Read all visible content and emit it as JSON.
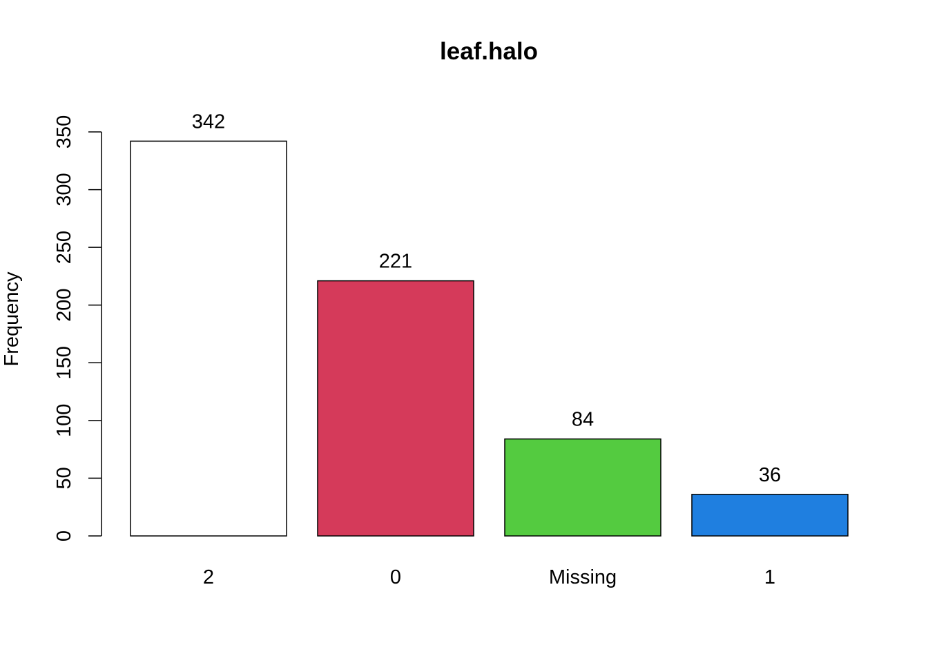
{
  "chart_data": {
    "type": "bar",
    "title": "leaf.halo",
    "xlabel": "",
    "ylabel": "Frequency",
    "categories": [
      "2",
      "0",
      "Missing",
      "1"
    ],
    "values": [
      342,
      221,
      84,
      36
    ],
    "data_labels": [
      "342",
      "221",
      "84",
      "36"
    ],
    "colors": [
      "#FFFFFF",
      "#D53A5A",
      "#54CB40",
      "#1F7FE0"
    ],
    "ylim": [
      0,
      350
    ],
    "yticks": [
      0,
      50,
      100,
      150,
      200,
      250,
      300,
      350
    ],
    "ytick_labels": [
      "0",
      "50",
      "100",
      "150",
      "200",
      "250",
      "300",
      "350"
    ],
    "grid": false,
    "legend": "none"
  }
}
